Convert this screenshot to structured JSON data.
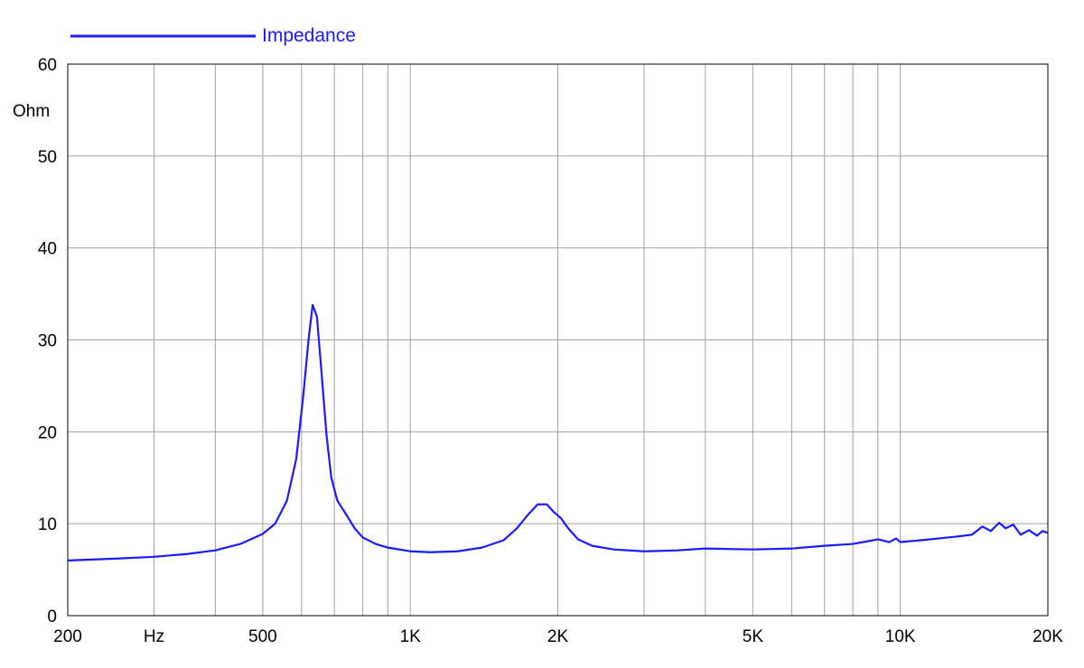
{
  "chart_data": {
    "type": "line",
    "title": "",
    "xlabel": "Hz",
    "ylabel": "Ohm",
    "x_scale": "log",
    "xlim": [
      200,
      20000
    ],
    "ylim": [
      0,
      60
    ],
    "grid": true,
    "legend_position": "top-left",
    "colors": {
      "series": "#1a1aff",
      "grid": "#a0a0a0",
      "axis": "#000000"
    },
    "x_ticks": [
      {
        "value": 200,
        "label": "200"
      },
      {
        "value": 500,
        "label": "500"
      },
      {
        "value": 1000,
        "label": "1K"
      },
      {
        "value": 2000,
        "label": "2K"
      },
      {
        "value": 5000,
        "label": "5K"
      },
      {
        "value": 10000,
        "label": "10K"
      },
      {
        "value": 20000,
        "label": "20K"
      }
    ],
    "x_unit_label_at": 300,
    "x_grid": [
      200,
      300,
      400,
      500,
      600,
      700,
      800,
      900,
      1000,
      2000,
      3000,
      4000,
      5000,
      6000,
      7000,
      8000,
      9000,
      10000,
      20000
    ],
    "y_ticks": [
      0,
      10,
      20,
      30,
      40,
      50,
      60
    ],
    "series": [
      {
        "name": "Impedance",
        "points": [
          [
            200,
            6.0
          ],
          [
            250,
            6.2
          ],
          [
            300,
            6.4
          ],
          [
            350,
            6.7
          ],
          [
            400,
            7.1
          ],
          [
            450,
            7.8
          ],
          [
            500,
            8.9
          ],
          [
            530,
            10.0
          ],
          [
            560,
            12.5
          ],
          [
            585,
            17.0
          ],
          [
            605,
            24.0
          ],
          [
            620,
            30.0
          ],
          [
            632,
            33.8
          ],
          [
            645,
            32.5
          ],
          [
            660,
            26.0
          ],
          [
            675,
            19.5
          ],
          [
            690,
            15.0
          ],
          [
            710,
            12.5
          ],
          [
            740,
            11.0
          ],
          [
            770,
            9.5
          ],
          [
            800,
            8.5
          ],
          [
            850,
            7.8
          ],
          [
            900,
            7.4
          ],
          [
            1000,
            7.0
          ],
          [
            1100,
            6.9
          ],
          [
            1250,
            7.0
          ],
          [
            1400,
            7.4
          ],
          [
            1550,
            8.2
          ],
          [
            1650,
            9.5
          ],
          [
            1740,
            11.0
          ],
          [
            1820,
            12.1
          ],
          [
            1900,
            12.1
          ],
          [
            1960,
            11.3
          ],
          [
            2030,
            10.6
          ],
          [
            2100,
            9.5
          ],
          [
            2200,
            8.3
          ],
          [
            2350,
            7.6
          ],
          [
            2600,
            7.2
          ],
          [
            3000,
            7.0
          ],
          [
            3500,
            7.1
          ],
          [
            4000,
            7.3
          ],
          [
            5000,
            7.2
          ],
          [
            6000,
            7.3
          ],
          [
            7000,
            7.6
          ],
          [
            8000,
            7.8
          ],
          [
            8600,
            8.1
          ],
          [
            9000,
            8.3
          ],
          [
            9500,
            8.0
          ],
          [
            9800,
            8.4
          ],
          [
            10000,
            8.0
          ],
          [
            11000,
            8.2
          ],
          [
            12000,
            8.4
          ],
          [
            13000,
            8.6
          ],
          [
            14000,
            8.8
          ],
          [
            14700,
            9.7
          ],
          [
            15300,
            9.2
          ],
          [
            15900,
            10.1
          ],
          [
            16400,
            9.5
          ],
          [
            17000,
            9.9
          ],
          [
            17600,
            8.8
          ],
          [
            18300,
            9.3
          ],
          [
            19000,
            8.7
          ],
          [
            19500,
            9.2
          ],
          [
            20000,
            9.0
          ]
        ]
      }
    ]
  }
}
